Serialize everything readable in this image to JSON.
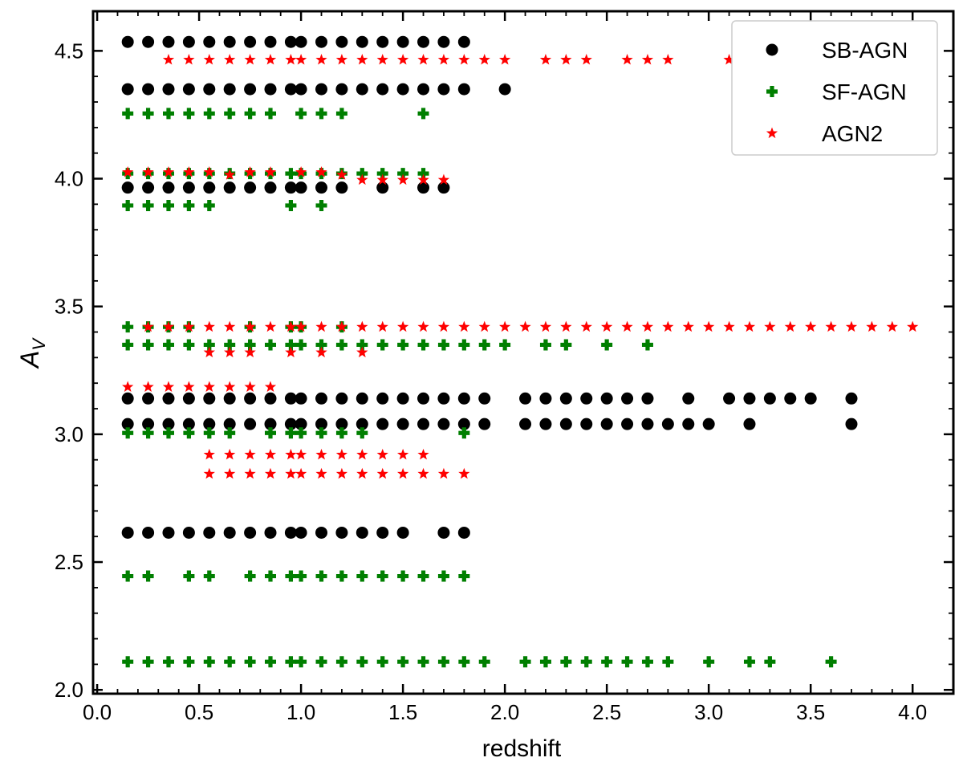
{
  "chart_data": {
    "type": "scatter",
    "xlabel": "redshift",
    "ylabel": "A",
    "ylabel_sub": "V",
    "xlim": [
      -0.02,
      4.2
    ],
    "ylim": [
      1.985,
      4.655
    ],
    "xticks": [
      0.0,
      0.5,
      1.0,
      1.5,
      2.0,
      2.5,
      3.0,
      3.5,
      4.0
    ],
    "xtick_labels": [
      "0.0",
      "0.5",
      "1.0",
      "1.5",
      "2.0",
      "2.5",
      "3.0",
      "3.5",
      "4.0"
    ],
    "yticks": [
      2.0,
      2.5,
      3.0,
      3.5,
      4.0,
      4.5
    ],
    "ytick_labels": [
      "2.0",
      "2.5",
      "3.0",
      "3.5",
      "4.0",
      "4.5"
    ],
    "grid": false,
    "legend_position": "top-right",
    "series": [
      {
        "name": "SB-AGN",
        "marker": "circle",
        "color": "#000000",
        "rows": [
          {
            "y": 4.535,
            "x": [
              0.15,
              0.25,
              0.35,
              0.45,
              0.55,
              0.65,
              0.75,
              0.85,
              0.95,
              1.0,
              1.1,
              1.2,
              1.3,
              1.4,
              1.5,
              1.6,
              1.7,
              1.8
            ]
          },
          {
            "y": 4.35,
            "x": [
              0.15,
              0.25,
              0.35,
              0.45,
              0.55,
              0.65,
              0.75,
              0.85,
              0.95,
              1.0,
              1.1,
              1.2,
              1.3,
              1.4,
              1.5,
              1.6,
              1.7,
              1.8,
              2.0
            ]
          },
          {
            "y": 3.965,
            "x": [
              0.15,
              0.25,
              0.35,
              0.45,
              0.55,
              0.65,
              0.75,
              0.85,
              0.95,
              1.0,
              1.1,
              1.2,
              1.4,
              1.6,
              1.7
            ]
          },
          {
            "y": 3.14,
            "x": [
              0.15,
              0.25,
              0.35,
              0.45,
              0.55,
              0.65,
              0.75,
              0.85,
              0.95,
              1.0,
              1.1,
              1.2,
              1.3,
              1.4,
              1.5,
              1.6,
              1.7,
              1.8,
              1.9,
              2.1,
              2.2,
              2.3,
              2.4,
              2.5,
              2.6,
              2.7,
              2.9,
              3.1,
              3.2,
              3.3,
              3.4,
              3.5,
              3.7
            ]
          },
          {
            "y": 3.04,
            "x": [
              0.15,
              0.25,
              0.35,
              0.45,
              0.55,
              0.65,
              0.75,
              0.85,
              0.95,
              1.0,
              1.1,
              1.2,
              1.3,
              1.4,
              1.5,
              1.6,
              1.7,
              1.8,
              1.9,
              2.1,
              2.2,
              2.3,
              2.4,
              2.5,
              2.6,
              2.7,
              2.8,
              2.9,
              3.0,
              3.2,
              3.7
            ]
          },
          {
            "y": 2.615,
            "x": [
              0.15,
              0.25,
              0.35,
              0.45,
              0.55,
              0.65,
              0.75,
              0.85,
              0.95,
              1.0,
              1.1,
              1.2,
              1.3,
              1.4,
              1.5,
              1.7,
              1.8
            ]
          }
        ]
      },
      {
        "name": "SF-AGN",
        "marker": "plus",
        "color": "#007f00",
        "rows": [
          {
            "y": 4.255,
            "x": [
              0.15,
              0.25,
              0.35,
              0.45,
              0.55,
              0.65,
              0.75,
              0.85,
              1.0,
              1.1,
              1.2,
              1.6
            ]
          },
          {
            "y": 4.02,
            "x": [
              0.15,
              0.25,
              0.35,
              0.45,
              0.55,
              0.65,
              0.75,
              0.85,
              0.95,
              1.0,
              1.1,
              1.2,
              1.3,
              1.4,
              1.5,
              1.6
            ]
          },
          {
            "y": 3.895,
            "x": [
              0.15,
              0.25,
              0.35,
              0.45,
              0.55,
              0.95,
              1.1
            ]
          },
          {
            "y": 3.42,
            "x": [
              0.15,
              0.25,
              0.35,
              0.45,
              0.75,
              0.95,
              1.0,
              1.2
            ]
          },
          {
            "y": 3.35,
            "x": [
              0.15,
              0.25,
              0.35,
              0.45,
              0.55,
              0.65,
              0.75,
              0.85,
              0.95,
              1.0,
              1.1,
              1.2,
              1.3,
              1.4,
              1.5,
              1.6,
              1.7,
              1.8,
              1.9,
              2.0,
              2.2,
              2.3,
              2.5,
              2.7
            ]
          },
          {
            "y": 3.005,
            "x": [
              0.15,
              0.25,
              0.35,
              0.45,
              0.55,
              0.65,
              0.85,
              0.95,
              1.0,
              1.1,
              1.2,
              1.3,
              1.8
            ]
          },
          {
            "y": 2.445,
            "x": [
              0.15,
              0.25,
              0.45,
              0.55,
              0.75,
              0.85,
              0.95,
              1.0,
              1.1,
              1.2,
              1.3,
              1.4,
              1.5,
              1.6,
              1.7,
              1.8
            ]
          },
          {
            "y": 2.11,
            "x": [
              0.15,
              0.25,
              0.35,
              0.45,
              0.55,
              0.65,
              0.75,
              0.85,
              0.95,
              1.0,
              1.1,
              1.2,
              1.3,
              1.4,
              1.5,
              1.6,
              1.7,
              1.8,
              1.9,
              2.1,
              2.2,
              2.3,
              2.4,
              2.5,
              2.6,
              2.7,
              2.8,
              3.0,
              3.2,
              3.3,
              3.6
            ]
          }
        ]
      },
      {
        "name": "AGN2",
        "marker": "star",
        "color": "#ff0000",
        "rows": [
          {
            "y": 4.465,
            "x": [
              0.35,
              0.45,
              0.55,
              0.65,
              0.75,
              0.85,
              0.95,
              1.0,
              1.1,
              1.2,
              1.3,
              1.4,
              1.5,
              1.6,
              1.7,
              1.8,
              1.9,
              2.0,
              2.2,
              2.3,
              2.4,
              2.6,
              2.7,
              2.8,
              3.1
            ]
          },
          {
            "y": 4.025,
            "x": [
              0.15,
              0.25,
              0.35,
              0.45,
              0.55,
              0.75,
              0.85,
              1.0,
              1.1
            ]
          },
          {
            "y": 4.015,
            "x": [
              0.65,
              1.2
            ]
          },
          {
            "y": 3.995,
            "x": [
              1.3,
              1.4,
              1.5,
              1.6,
              1.7
            ]
          },
          {
            "y": 3.42,
            "x": [
              0.25,
              0.35,
              0.45,
              0.55,
              0.65,
              0.75,
              0.85,
              0.95,
              1.0,
              1.1,
              1.2,
              1.3,
              1.4,
              1.5,
              1.6,
              1.7,
              1.8,
              1.9,
              2.0,
              2.1,
              2.2,
              2.3,
              2.4,
              2.5,
              2.6,
              2.7,
              2.8,
              2.9,
              3.0,
              3.1,
              3.2,
              3.3,
              3.4,
              3.5,
              3.6,
              3.7,
              3.8,
              3.9,
              4.0
            ]
          },
          {
            "y": 3.32,
            "x": [
              0.55,
              0.65,
              0.75,
              0.95,
              1.1,
              1.3
            ]
          },
          {
            "y": 3.185,
            "x": [
              0.15,
              0.25,
              0.35,
              0.45,
              0.55,
              0.65,
              0.75,
              0.85
            ]
          },
          {
            "y": 2.92,
            "x": [
              0.55,
              0.65,
              0.75,
              0.85,
              0.95,
              1.0,
              1.1,
              1.2,
              1.3,
              1.4,
              1.5,
              1.6
            ]
          },
          {
            "y": 2.845,
            "x": [
              0.55,
              0.65,
              0.75,
              0.85,
              0.95,
              1.0,
              1.1,
              1.2,
              1.3,
              1.4,
              1.5,
              1.6,
              1.7,
              1.8
            ]
          }
        ]
      }
    ]
  }
}
